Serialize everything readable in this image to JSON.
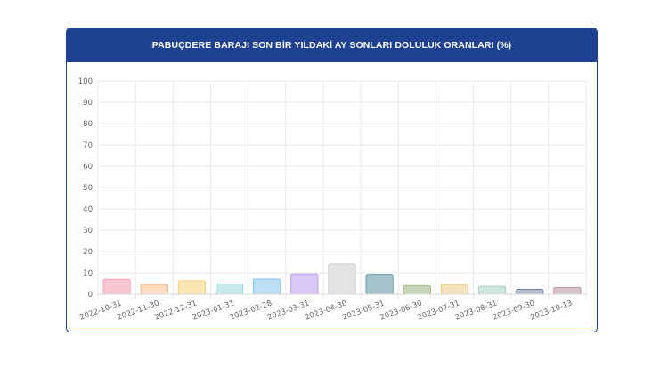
{
  "chart_data": {
    "type": "bar",
    "title": "PABUÇDERE BARAJI SON BİR YILDAKİ AY SONLARI DOLULUK ORANLARI (%)",
    "categories": [
      "2022-10-31",
      "2022-11-30",
      "2022-12-31",
      "2023-01-31",
      "2023-02-28",
      "2023-03-31",
      "2023-04-30",
      "2023-05-31",
      "2023-06-30",
      "2023-07-31",
      "2023-08-31",
      "2023-09-30",
      "2023-10-13"
    ],
    "values": [
      7.0,
      4.5,
      6.3,
      4.8,
      7.1,
      9.5,
      14.2,
      9.3,
      4.0,
      4.6,
      3.7,
      2.3,
      3.2
    ],
    "ylim": [
      0,
      100
    ],
    "yticks": [
      0,
      10,
      20,
      30,
      40,
      50,
      60,
      70,
      80,
      90,
      100
    ],
    "grid": true,
    "colors": {
      "fills": [
        "#f9c5d1",
        "#fcdcc3",
        "#fbe7b3",
        "#c6eaec",
        "#bcdff5",
        "#dac8f7",
        "#e3e3e3",
        "#a6c4cc",
        "#c7d6b6",
        "#f5e3bf",
        "#cfe6dc",
        "#b2bfd1",
        "#d6c2cb"
      ],
      "borders": [
        "#f3a6b9",
        "#f5be92",
        "#f1d084",
        "#93d4d9",
        "#86c3ec",
        "#b89ff0",
        "#cdcdcd",
        "#6f9aa6",
        "#9db587",
        "#e8c88c",
        "#a8d1bf",
        "#6d82a3",
        "#b898a6"
      ]
    }
  }
}
